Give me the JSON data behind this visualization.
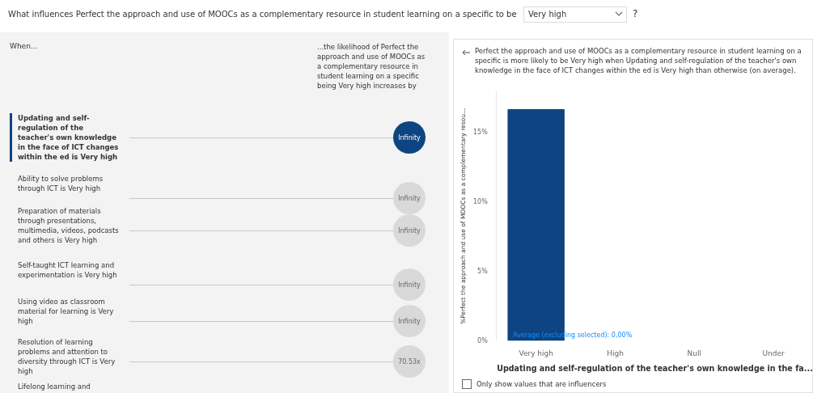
{
  "chart_data": [
    {
      "type": "other",
      "title": "What influences Perfect the approach and use of MOOCs as a complementary resource in student learning on a specific to be",
      "subtitle": "Very high",
      "annotations": [
        "?"
      ],
      "xlabel": "When...",
      "ylabel": "...the likelihood of Perfect the approach and use of MOOCs as a complementary resource in student learning on a specific being Very high increases by",
      "categories": [
        "Updating and self-regulation of the teacher's own knowledge in the face of ICT changes within the ed is Very high",
        "Ability to solve problems through ICT is Very high",
        "Preparation of materials through presentations, multimedia, videos, podcasts and others is Very high",
        "Self-taught ICT learning and experimentation is Very high",
        "Using video as classroom material for learning is Very high",
        "Resolution of learning problems and attention to diversity through ICT is Very high",
        "Lifelong learning and"
      ],
      "value_labels": [
        "Infinity",
        "Infinity",
        "Infinity",
        "Infinity",
        "Infinity",
        "70.53x",
        null
      ],
      "colors": [
        "#0e4481",
        "#d9d9d9",
        "#d9d9d9",
        "#d9d9d9",
        "#d9d9d9",
        "#d9d9d9",
        "#d9d9d9"
      ]
    },
    {
      "type": "bar",
      "title": "Perfect the approach and use of MOOCs as a complementary resource in student learning on a specific is more likely to be Very high when Updating and self-regulation of the teacher's own knowledge in the face of ICT changes within the ed is Very high than otherwise (on average).",
      "categories": [
        "Very high",
        "High",
        "Null",
        "Under"
      ],
      "values": [
        16.7,
        0,
        0,
        0
      ],
      "color": "#0e4481",
      "ylim": [
        0,
        18
      ],
      "yticks": [
        {
          "value": 0,
          "label": "0%"
        },
        {
          "value": 5,
          "label": "5%"
        },
        {
          "value": 10,
          "label": "10%"
        },
        {
          "value": 15,
          "label": "15%"
        }
      ],
      "ylabel": "%Perfect the approach and use of MOOCs as a complementary resou…",
      "xlabel": "Updating and self-regulation of the teacher's own knowledge in the fa...",
      "annotations": [
        {
          "text": "Average (excluding selected): 0,00%",
          "x": "Very high",
          "y": 0
        },
        "Only show values that are influencers"
      ]
    }
  ]
}
